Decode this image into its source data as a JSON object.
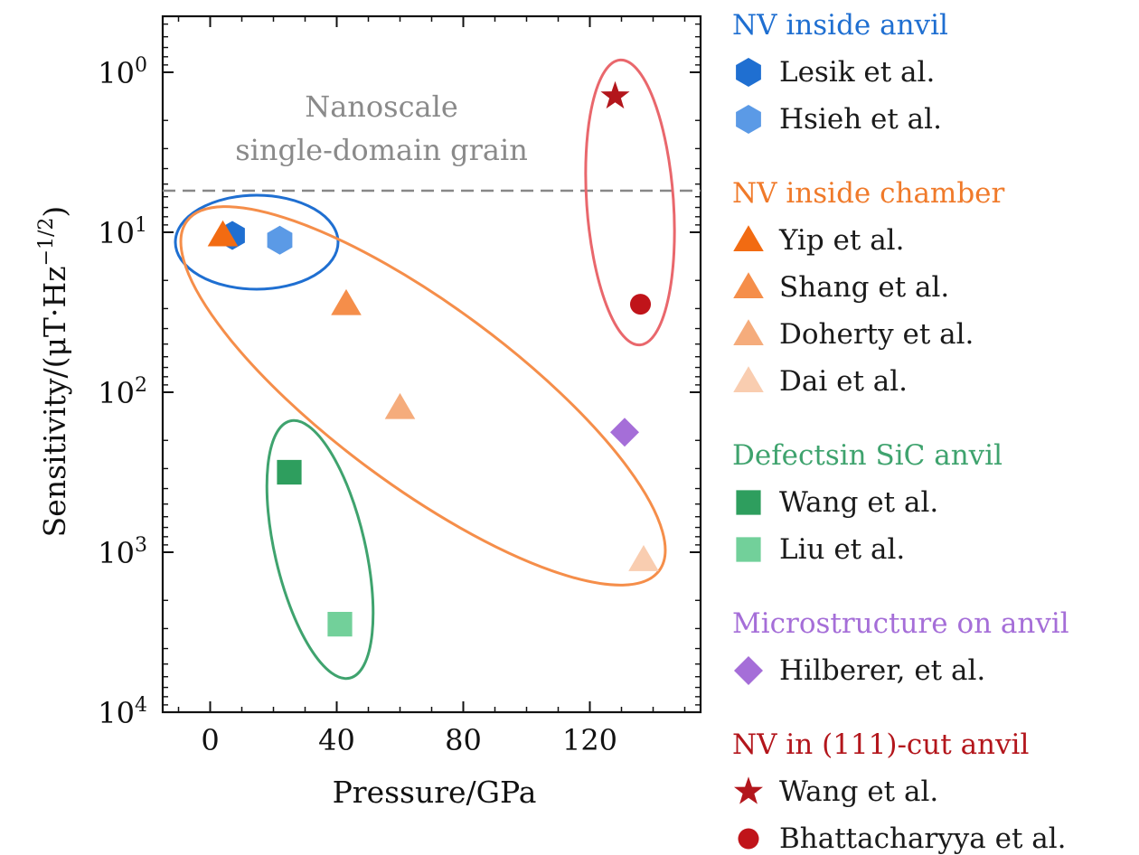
{
  "chart_data": {
    "type": "scatter",
    "xlabel": "Pressure/GPa",
    "ylabel": "Sensitivity/(μT·Hz",
    "ylabel_exp": "−1/2",
    "ylabel_close": ")",
    "x_ticks": [
      "0",
      "40",
      "80",
      "120"
    ],
    "y_ticks": [
      {
        "base": "10",
        "exp": "0"
      },
      {
        "base": "10",
        "exp": "1"
      },
      {
        "base": "10",
        "exp": "2"
      },
      {
        "base": "10",
        "exp": "3"
      },
      {
        "base": "10",
        "exp": "4"
      }
    ],
    "xlim": [
      -15,
      155
    ],
    "ylim_exponent": [
      -0.35,
      4.0
    ],
    "y_axis_inverted": true,
    "annotation": [
      "Nanoscale",
      "single-domain grain"
    ],
    "threshold_line": {
      "exponent": 0.74,
      "style": "dashed",
      "color": "#888888"
    },
    "series": [
      {
        "name": "Lesik et al.",
        "group": 0,
        "marker": "hexagon",
        "color": "#1f6fd1",
        "points": [
          [
            7,
            1.02
          ]
        ]
      },
      {
        "name": "Hsieh et al.",
        "group": 0,
        "marker": "hexagon",
        "color": "#5b9ae6",
        "points": [
          [
            22,
            1.05
          ]
        ]
      },
      {
        "name": "Yip et al.",
        "group": 1,
        "marker": "triangle",
        "color": "#f26b12",
        "points": [
          [
            4,
            1.02
          ]
        ]
      },
      {
        "name": "Shang et al.",
        "group": 1,
        "marker": "triangle",
        "color": "#f58e4a",
        "points": [
          [
            43,
            1.45
          ]
        ]
      },
      {
        "name": "Doherty et al.",
        "group": 1,
        "marker": "triangle",
        "color": "#f5ac7c",
        "points": [
          [
            60,
            2.1
          ]
        ]
      },
      {
        "name": "Dai et al.",
        "group": 1,
        "marker": "triangle",
        "color": "#f9cdb0",
        "points": [
          [
            137,
            3.05
          ]
        ]
      },
      {
        "name": "Wang et al.",
        "group": 2,
        "marker": "square",
        "color": "#2e9e5e",
        "points": [
          [
            25,
            2.5
          ]
        ]
      },
      {
        "name": "Liu et al.",
        "group": 2,
        "marker": "square",
        "color": "#72d09a",
        "points": [
          [
            41,
            3.45
          ]
        ]
      },
      {
        "name": "Hilberer, et al.",
        "group": 3,
        "marker": "diamond",
        "color": "#a56ed8",
        "points": [
          [
            131,
            2.25
          ]
        ]
      },
      {
        "name": "Wang et al.",
        "group": 4,
        "marker": "star",
        "color": "#b3161c",
        "points": [
          [
            128,
            0.15
          ]
        ]
      },
      {
        "name": "Bhattacharyya et al.",
        "group": 4,
        "marker": "circle",
        "color": "#c0141a",
        "points": [
          [
            136,
            1.45
          ]
        ]
      }
    ],
    "groups": [
      {
        "title": "NV inside anvil",
        "color": "#1f6fd1"
      },
      {
        "title": "NV inside chamber",
        "color": "#f07a2a"
      },
      {
        "title": "Defectsin SiC anvil",
        "color": "#3fa36e"
      },
      {
        "title": "Microstructure on anvil",
        "color": "#a56ed8"
      },
      {
        "title": "NV in (111)-cut anvil",
        "color": "#b3161c"
      }
    ],
    "enclosures": [
      {
        "group": 0,
        "color": "#1f6fd1"
      },
      {
        "group": 1,
        "color": "#f58e4a"
      },
      {
        "group": 2,
        "color": "#3fa36e"
      },
      {
        "group": 4,
        "color": "#e9676c"
      }
    ],
    "grid": false,
    "legend_position": "right"
  }
}
